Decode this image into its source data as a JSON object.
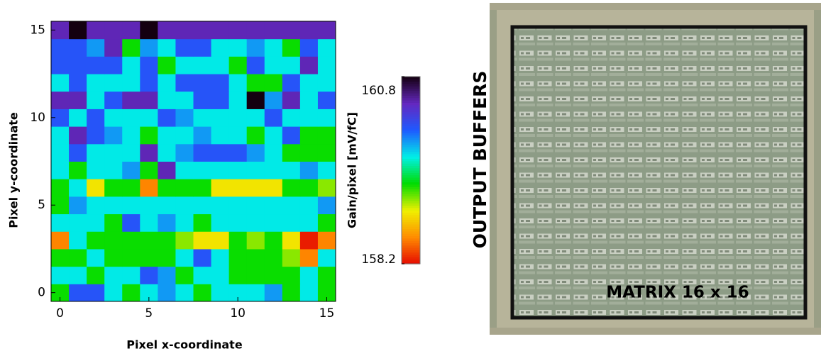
{
  "chart_data": {
    "type": "heatmap",
    "xlabel": "Pixel x-coordinate",
    "ylabel": "Pixel y-coordinate",
    "x": [
      0,
      1,
      2,
      3,
      4,
      5,
      6,
      7,
      8,
      9,
      10,
      11,
      12,
      13,
      14,
      15
    ],
    "y": [
      0,
      1,
      2,
      3,
      4,
      5,
      6,
      7,
      8,
      9,
      10,
      11,
      12,
      13,
      14,
      15
    ],
    "xlim": [
      -0.5,
      15.5
    ],
    "ylim": [
      -0.5,
      15.5
    ],
    "xticks": [
      0,
      5,
      10,
      15
    ],
    "yticks": [
      0,
      5,
      10,
      15
    ],
    "z": [
      [
        159.3,
        160.1,
        160.1,
        159.7,
        159.3,
        159.7,
        159.9,
        159.7,
        159.3,
        159.7,
        159.7,
        159.7,
        159.9,
        159.3,
        159.7,
        159.3
      ],
      [
        159.7,
        159.7,
        159.3,
        159.7,
        159.7,
        160.1,
        159.9,
        159.3,
        159.7,
        159.7,
        159.3,
        159.3,
        159.3,
        159.3,
        159.7,
        159.3
      ],
      [
        159.3,
        159.3,
        159.7,
        159.3,
        159.3,
        159.3,
        159.3,
        159.7,
        160.1,
        159.7,
        159.3,
        159.3,
        159.3,
        159.1,
        158.55,
        159.7
      ],
      [
        158.55,
        159.7,
        159.3,
        159.3,
        159.3,
        159.3,
        159.3,
        159.1,
        158.9,
        158.9,
        159.3,
        159.1,
        159.3,
        158.9,
        158.25,
        158.55
      ],
      [
        159.7,
        159.7,
        159.7,
        159.3,
        160.1,
        159.7,
        159.9,
        159.7,
        159.3,
        159.7,
        159.7,
        159.7,
        159.7,
        159.7,
        159.7,
        159.3
      ],
      [
        159.3,
        159.9,
        159.7,
        159.7,
        159.7,
        159.7,
        159.7,
        159.7,
        159.7,
        159.7,
        159.7,
        159.7,
        159.7,
        159.7,
        159.7,
        159.9
      ],
      [
        159.3,
        159.7,
        158.9,
        159.3,
        159.3,
        158.55,
        159.3,
        159.3,
        159.3,
        158.9,
        158.9,
        158.9,
        158.9,
        159.3,
        159.3,
        159.1
      ],
      [
        159.7,
        159.3,
        159.7,
        159.7,
        159.9,
        159.3,
        160.45,
        159.7,
        159.7,
        159.7,
        159.7,
        159.7,
        159.7,
        159.7,
        159.9,
        159.7
      ],
      [
        159.7,
        160.1,
        159.7,
        159.7,
        159.7,
        160.45,
        159.7,
        159.9,
        160.1,
        160.1,
        160.1,
        159.9,
        159.7,
        159.3,
        159.3,
        159.3
      ],
      [
        159.7,
        160.45,
        160.1,
        159.9,
        159.7,
        159.3,
        159.7,
        159.7,
        159.9,
        159.7,
        159.7,
        159.3,
        159.7,
        160.1,
        159.3,
        159.3
      ],
      [
        160.1,
        159.7,
        160.1,
        159.7,
        159.7,
        159.7,
        160.1,
        159.9,
        159.7,
        159.7,
        159.7,
        159.7,
        160.1,
        159.7,
        159.7,
        159.7
      ],
      [
        160.45,
        160.45,
        159.7,
        160.1,
        160.45,
        160.45,
        159.7,
        159.7,
        160.1,
        160.1,
        159.7,
        160.8,
        159.9,
        160.45,
        159.7,
        160.1
      ],
      [
        159.7,
        160.1,
        159.7,
        159.7,
        159.7,
        160.1,
        159.7,
        160.1,
        160.1,
        160.1,
        159.7,
        159.3,
        159.3,
        160.1,
        159.7,
        159.7
      ],
      [
        160.1,
        160.1,
        160.1,
        160.1,
        159.7,
        160.1,
        159.3,
        159.7,
        159.7,
        159.7,
        159.3,
        160.1,
        159.7,
        159.7,
        160.45,
        159.7
      ],
      [
        160.1,
        160.1,
        159.9,
        160.45,
        159.3,
        159.9,
        159.7,
        160.1,
        160.1,
        159.7,
        159.7,
        159.9,
        159.7,
        159.3,
        160.1,
        159.7
      ],
      [
        160.45,
        160.8,
        160.45,
        160.45,
        160.45,
        160.8,
        160.45,
        160.45,
        160.45,
        160.45,
        160.45,
        160.45,
        160.45,
        160.45,
        160.45,
        160.45
      ]
    ],
    "clim": [
      158.2,
      160.8
    ],
    "cticks": [
      158.2,
      160.8
    ],
    "clabel": "Gain/pixel [mV/fC]",
    "colorscale": [
      "#e60a00",
      "#ff8c00",
      "#f0f000",
      "#00dc00",
      "#00f0e6",
      "#1e5aff",
      "#6428c0",
      "#140010"
    ]
  },
  "image": {
    "side_label": "OUTPUT BUFFERS",
    "matrix_label": "MATRIX 16 x 16"
  }
}
